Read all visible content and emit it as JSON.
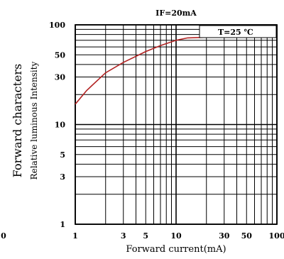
{
  "chart_data": {
    "type": "line",
    "title": "IF=20mA",
    "annotation": "T=25 ℃",
    "ylabel_line1": "Forward characters",
    "ylabel_line2": "Relative luminous Intensity",
    "xlabel": "Forward current(mA)",
    "x_scale": "log",
    "y_scale": "log",
    "xlim": [
      1,
      100
    ],
    "ylim": [
      1,
      100
    ],
    "x_ticks": [
      {
        "value": 1,
        "label": "1"
      },
      {
        "value": 3,
        "label": "3"
      },
      {
        "value": 5,
        "label": "5"
      },
      {
        "value": 10,
        "label": "10"
      },
      {
        "value": 30,
        "label": "30"
      },
      {
        "value": 50,
        "label": "50"
      },
      {
        "value": 100,
        "label": "100"
      }
    ],
    "y_ticks": [
      {
        "value": 1,
        "label": "1"
      },
      {
        "value": 3,
        "label": "3"
      },
      {
        "value": 5,
        "label": "5"
      },
      {
        "value": 10,
        "label": "10"
      },
      {
        "value": 30,
        "label": "30"
      },
      {
        "value": 50,
        "label": "50"
      },
      {
        "value": 100,
        "label": "100"
      }
    ],
    "edge_label": "0",
    "grid": true,
    "series": [
      {
        "color": "#b22222",
        "points": [
          {
            "x": 1,
            "y": 16
          },
          {
            "x": 1.3,
            "y": 22
          },
          {
            "x": 2,
            "y": 33
          },
          {
            "x": 3,
            "y": 42
          },
          {
            "x": 5,
            "y": 54
          },
          {
            "x": 7,
            "y": 62
          },
          {
            "x": 10,
            "y": 70
          },
          {
            "x": 13,
            "y": 74
          },
          {
            "x": 20,
            "y": 75
          }
        ]
      }
    ]
  }
}
